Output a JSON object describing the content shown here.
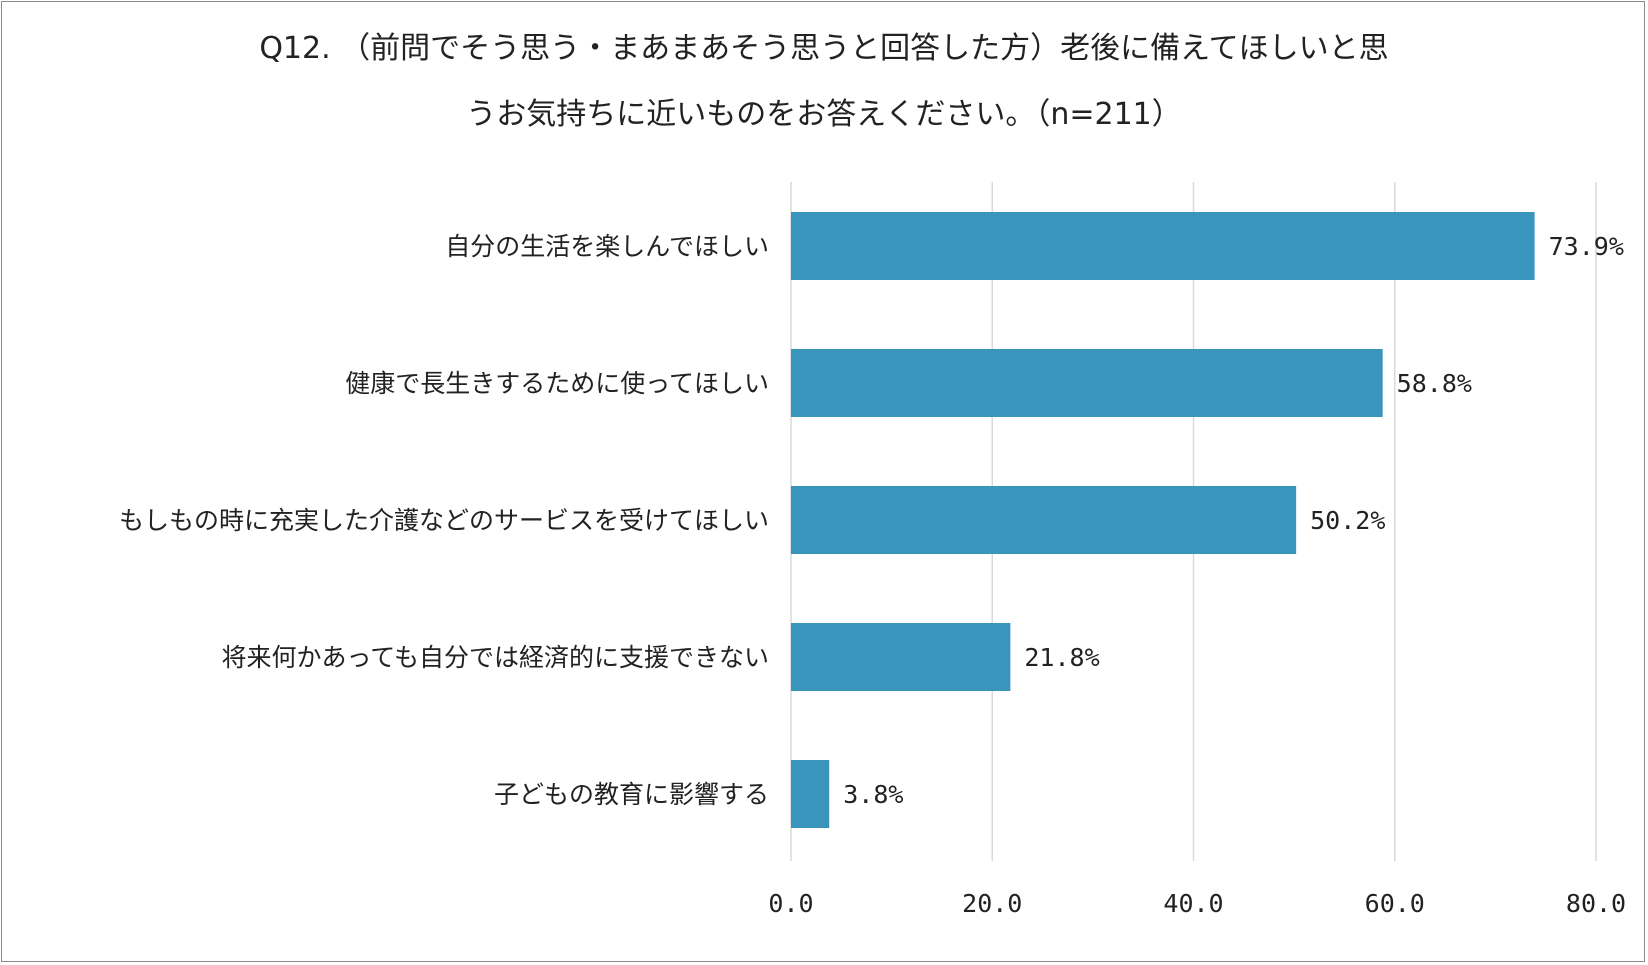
{
  "chart_data": {
    "type": "bar",
    "orientation": "horizontal",
    "title_lines": [
      "Q12. （前問でそう思う・まあまあそう思うと回答した方）老後に備えてほしいと思",
      "うお気持ちに近いものをお答えください。（n=211）"
    ],
    "categories": [
      "自分の生活を楽しんでほしい",
      "健康で長生きするために使ってほしい",
      "もしもの時に充実した介護などのサービスを受けてほしい",
      "将来何かあっても自分では経済的に支援できない",
      "子どもの教育に影響する"
    ],
    "values": [
      73.9,
      58.8,
      50.2,
      21.8,
      3.8
    ],
    "value_labels": [
      "73.9%",
      "58.8%",
      "50.2%",
      "21.8%",
      "3.8%"
    ],
    "xlim": [
      0,
      80
    ],
    "xticks": [
      0,
      20,
      40,
      60,
      80
    ],
    "xtick_labels": [
      "0.0",
      "20.0",
      "40.0",
      "60.0",
      "80.0"
    ],
    "grid": true,
    "bar_color": "#3a95bd",
    "grid_color": "#d9d9d9"
  }
}
